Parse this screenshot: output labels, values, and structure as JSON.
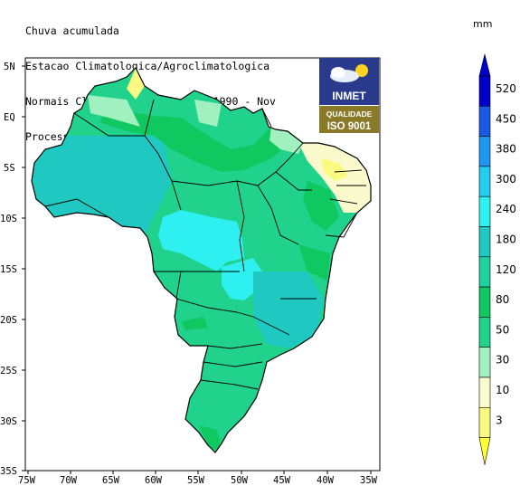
{
  "header": {
    "line1": "Chuva acumulada",
    "line2": "Estacao Climatologica/Agroclimatologica",
    "line3": "Normais Climatologicas - 1961-1990 - Nov",
    "line4": "Processado em: 10:31:18 de 17/03/2008"
  },
  "logo": {
    "name": "INMET",
    "quality": "QUALIDADE",
    "iso": "ISO 9001"
  },
  "legend": {
    "unit": "mm",
    "levels": [
      "520",
      "450",
      "380",
      "300",
      "240",
      "180",
      "120",
      "80",
      "50",
      "30",
      "10",
      "3"
    ],
    "colors": [
      "#0000cc",
      "#1a5ae6",
      "#1f96f0",
      "#24cdf0",
      "#2ef0f0",
      "#1fc8c0",
      "#1ed2a0",
      "#10c860",
      "#20d28c",
      "#a0f0c0",
      "#fafacc",
      "#fafa82",
      "#ffff33"
    ]
  },
  "axes": {
    "lat_labels": [
      "5N",
      "EQ",
      "5S",
      "10S",
      "15S",
      "20S",
      "25S",
      "30S",
      "35S"
    ],
    "lon_labels": [
      "75W",
      "70W",
      "65W",
      "60W",
      "55W",
      "50W",
      "45W",
      "40W",
      "35W"
    ]
  }
}
